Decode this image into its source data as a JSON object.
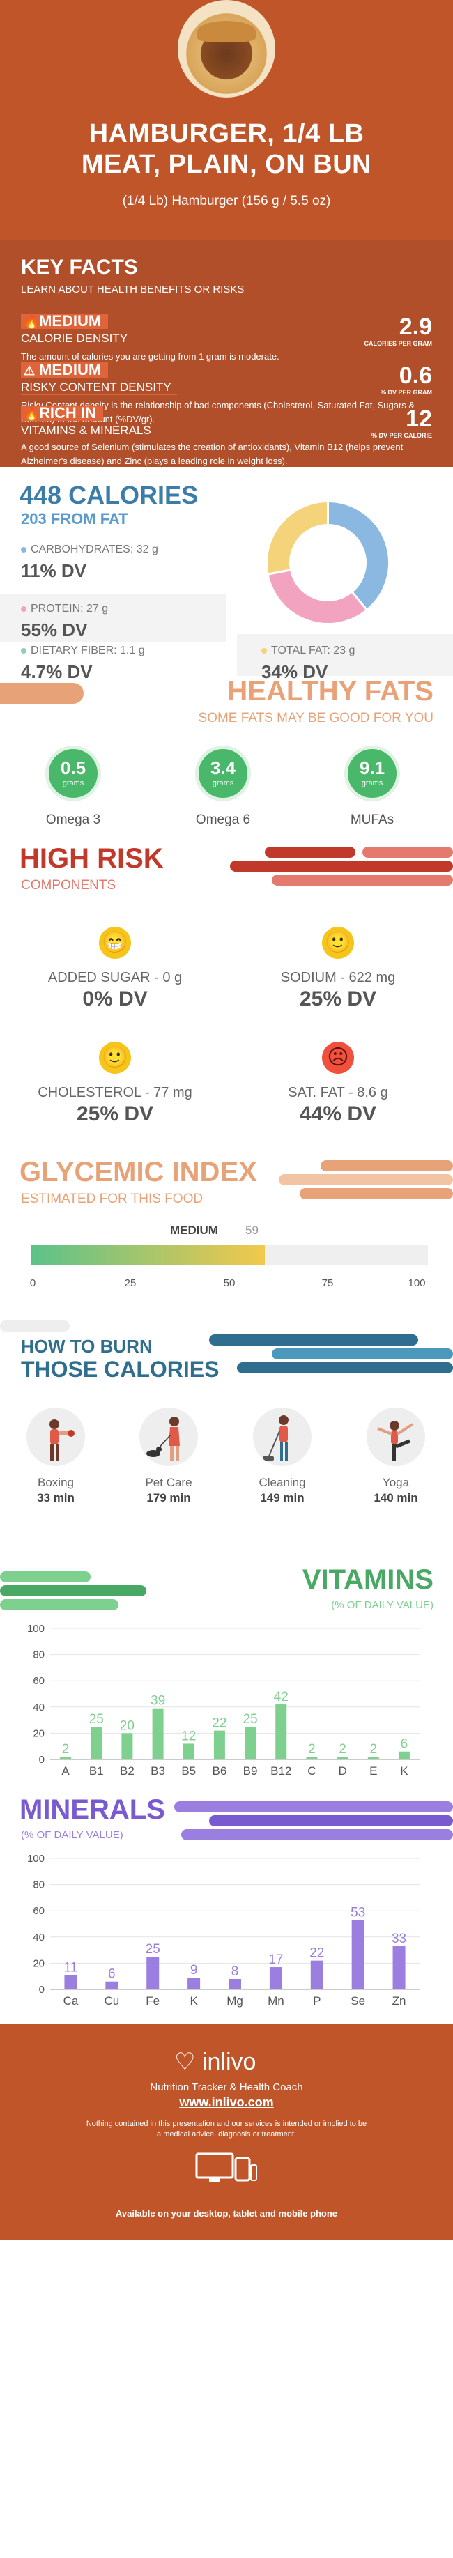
{
  "header": {
    "title_line1": "HAMBURGER, 1/4 LB",
    "title_line2": "MEAT, PLAIN, ON BUN",
    "subtitle": "(1/4 Lb) Hamburger (156 g / 5.5 oz)"
  },
  "key_facts": {
    "title": "KEY FACTS",
    "subtitle": "LEARN ABOUT HEALTH BENEFITS OR RISKS",
    "items": [
      {
        "badge": "MEDIUM",
        "label": "CALORIE DENSITY",
        "value": "2.9",
        "unit": "CALORIES PER GRAM",
        "icon": "fire-icon",
        "desc": "The amount of calories you are getting from 1 gram is moderate."
      },
      {
        "badge": "MEDIUM",
        "label": "RISKY CONTENT DENSITY",
        "value": "0.6",
        "unit": "% DV PER GRAM",
        "icon": "warning-icon",
        "desc": "Risky Content density is the relationship of bad components (Cholesterol, Saturated Fat, Sugars & Sodium) to the amount (%DV/gr)."
      },
      {
        "badge": "RICH  IN",
        "label": "VITAMINS & MINERALS",
        "value": "12",
        "unit": "% DV PER CALORIE",
        "icon": "fire-icon",
        "desc": "A good source of Selenium (stimulates the creation of antioxidants), Vitamin B12 (helps prevent Alzheimer's disease) and Zinc (plays a leading role in weight loss)."
      }
    ]
  },
  "calories": {
    "title": "448 CALORIES",
    "from_fat": "203 FROM FAT",
    "macros": [
      {
        "label": "CARBOHYDRATES: 32 g",
        "dv": "11% DV",
        "color": "#8bb8e0"
      },
      {
        "label": "PROTEIN: 27 g",
        "dv": "55% DV",
        "color": "#f2a3bf"
      },
      {
        "label": "DIETARY FIBER: 1.1 g",
        "dv": "4.7% DV",
        "color": "#8fd0b0"
      },
      {
        "label": "TOTAL FAT: 23 g",
        "dv": "34% DV",
        "color": "#f5d37a"
      }
    ],
    "donut": [
      {
        "name": "carbohydrates",
        "value": 32,
        "color": "#8bb8e0"
      },
      {
        "name": "protein",
        "value": 27,
        "color": "#f2a3bf"
      },
      {
        "name": "fat",
        "value": 23,
        "color": "#f5d37a"
      }
    ]
  },
  "healthy_fats": {
    "title": "HEALTHY FATS",
    "subtitle": "SOME FATS MAY BE GOOD FOR YOU",
    "items": [
      {
        "value": "0.5",
        "unit": "grams",
        "name": "Omega 3"
      },
      {
        "value": "3.4",
        "unit": "grams",
        "name": "Omega 6"
      },
      {
        "value": "9.1",
        "unit": "grams",
        "name": "MUFAs"
      }
    ]
  },
  "high_risk": {
    "title": "HIGH RISK",
    "subtitle": "COMPONENTS",
    "items": [
      {
        "label": "ADDED SUGAR - 0 g",
        "dv": "0% DV",
        "face": "😁"
      },
      {
        "label": "SODIUM - 622 mg",
        "dv": "25% DV",
        "face": "🙂"
      },
      {
        "label": "CHOLESTEROL - 77 mg",
        "dv": "25% DV",
        "face": "🙂"
      },
      {
        "label": "SAT. FAT - 8.6 g",
        "dv": "44% DV",
        "face": "☹"
      }
    ]
  },
  "glycemic": {
    "title": "GLYCEMIC INDEX",
    "subtitle": "ESTIMATED FOR THIS FOOD",
    "level": "MEDIUM",
    "value": "59",
    "fill_fraction": 0.59,
    "ticks": [
      "0",
      "25",
      "50",
      "75",
      "100"
    ]
  },
  "burn": {
    "title_line1": "HOW TO BURN",
    "title_line2": "THOSE CALORIES",
    "activities": [
      {
        "name": "Boxing",
        "minutes": "33 min",
        "icon": "boxing-icon"
      },
      {
        "name": "Pet Care",
        "minutes": "179 min",
        "icon": "dog-walking-icon"
      },
      {
        "name": "Cleaning",
        "minutes": "149 min",
        "icon": "vacuum-cleaning-icon"
      },
      {
        "name": "Yoga",
        "minutes": "140 min",
        "icon": "yoga-icon"
      }
    ]
  },
  "chart_data": [
    {
      "type": "bar",
      "title": "VITAMINS",
      "subtitle": "(% OF DAILY VALUE)",
      "categories": [
        "A",
        "B1",
        "B2",
        "B3",
        "B5",
        "B6",
        "B9",
        "B12",
        "C",
        "D",
        "E",
        "K"
      ],
      "values": [
        2,
        25,
        20,
        39,
        12,
        22,
        25,
        42,
        2,
        2,
        2,
        6
      ],
      "value_labels": [
        "2",
        "25",
        "20",
        "39",
        "12",
        "22",
        "25",
        "42",
        "2",
        "2",
        "2",
        "6"
      ],
      "ylim": [
        0,
        100
      ],
      "yticks": [
        "0",
        "20",
        "40",
        "60",
        "80",
        "100"
      ],
      "grid": true,
      "color": "#7ed08f"
    },
    {
      "type": "bar",
      "title": "MINERALS",
      "subtitle": "(% OF DAILY VALUE)",
      "categories": [
        "Ca",
        "Cu",
        "Fe",
        "K",
        "Mg",
        "Mn",
        "P",
        "Se",
        "Zn"
      ],
      "values": [
        11,
        6,
        25,
        9,
        8,
        17,
        22,
        53,
        33
      ],
      "value_labels": [
        "11",
        "6",
        "25",
        "9",
        "8",
        "17",
        "22",
        "53",
        "33"
      ],
      "ylim": [
        0,
        100
      ],
      "yticks": [
        "0",
        "20",
        "40",
        "60",
        "80",
        "100"
      ],
      "grid": true,
      "color": "#9b7fe0"
    }
  ],
  "footer": {
    "logo": "inlivo",
    "tagline": "Nutrition Tracker & Health Coach",
    "url": "www.inlivo.com",
    "disclaimer": "Nothing contained in this presentation and our services is intended or implied to be a medical advice, diagnosis or treatment.",
    "available": "Available on your desktop, tablet and mobile phone"
  }
}
